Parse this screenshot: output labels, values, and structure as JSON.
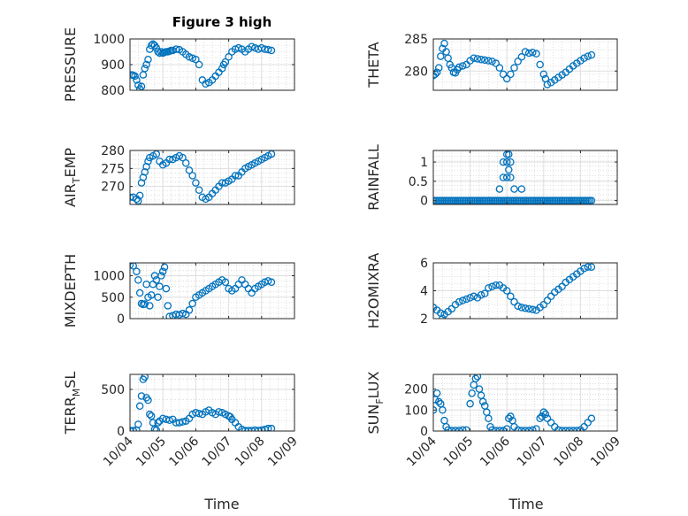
{
  "title": "Figure 3 high",
  "x_axis": {
    "label": "Time",
    "ticks": [
      "10/04",
      "10/05",
      "10/06",
      "10/07",
      "10/08",
      "10/09"
    ],
    "range": [
      0,
      5
    ]
  },
  "marker_color": "#0072BD",
  "chart_data": [
    {
      "type": "scatter",
      "ylabel": "PRESSURE",
      "ylabel_sub": "",
      "ylabel_post": "",
      "ylim": [
        800,
        1000
      ],
      "yticks": [
        800,
        900,
        1000
      ],
      "ytick_labels": [
        "800",
        "900",
        "1000"
      ],
      "x": [
        0.05,
        0.1,
        0.15,
        0.2,
        0.25,
        0.3,
        0.35,
        0.4,
        0.45,
        0.5,
        0.55,
        0.6,
        0.65,
        0.7,
        0.75,
        0.8,
        0.85,
        0.9,
        0.95,
        1.0,
        1.05,
        1.1,
        1.15,
        1.2,
        1.25,
        1.3,
        1.4,
        1.5,
        1.6,
        1.7,
        1.8,
        1.9,
        2.0,
        2.1,
        2.2,
        2.3,
        2.4,
        2.5,
        2.6,
        2.7,
        2.8,
        2.85,
        2.9,
        3.0,
        3.1,
        3.2,
        3.3,
        3.4,
        3.5,
        3.6,
        3.7,
        3.8,
        3.9,
        4.0,
        4.1,
        4.2,
        4.3
      ],
      "y": [
        860,
        858,
        855,
        840,
        820,
        805,
        815,
        860,
        885,
        900,
        920,
        960,
        975,
        980,
        975,
        965,
        950,
        945,
        950,
        945,
        948,
        950,
        950,
        952,
        955,
        955,
        960,
        958,
        950,
        940,
        930,
        925,
        920,
        900,
        840,
        825,
        830,
        840,
        855,
        870,
        885,
        900,
        910,
        930,
        950,
        960,
        965,
        960,
        950,
        960,
        970,
        965,
        960,
        965,
        960,
        958,
        955
      ]
    },
    {
      "type": "scatter",
      "ylabel": "THETA",
      "ylabel_sub": "",
      "ylabel_post": "",
      "ylim": [
        277,
        285
      ],
      "yticks": [
        280,
        285
      ],
      "ytick_labels": [
        "280",
        "285"
      ],
      "x": [
        0.0,
        0.05,
        0.1,
        0.15,
        0.2,
        0.25,
        0.3,
        0.35,
        0.4,
        0.45,
        0.5,
        0.55,
        0.6,
        0.65,
        0.7,
        0.8,
        0.9,
        1.0,
        1.1,
        1.2,
        1.3,
        1.4,
        1.5,
        1.6,
        1.7,
        1.8,
        1.9,
        2.0,
        2.1,
        2.2,
        2.3,
        2.4,
        2.5,
        2.6,
        2.7,
        2.8,
        2.9,
        3.0,
        3.05,
        3.1,
        3.2,
        3.3,
        3.4,
        3.5,
        3.6,
        3.7,
        3.8,
        3.9,
        4.0,
        4.1,
        4.2,
        4.3
      ],
      "y": [
        279.3,
        279.5,
        279.8,
        280.5,
        282.3,
        283.5,
        284.3,
        283.0,
        282.0,
        281.0,
        280.5,
        279.8,
        279.7,
        280.2,
        280.6,
        280.8,
        281.0,
        281.6,
        282.0,
        281.9,
        281.8,
        281.7,
        281.6,
        281.5,
        281.2,
        280.5,
        279.5,
        278.8,
        279.5,
        280.5,
        281.5,
        282.2,
        283.0,
        282.8,
        282.9,
        282.7,
        281.0,
        279.5,
        278.8,
        277.9,
        278.2,
        278.6,
        279.0,
        279.4,
        279.8,
        280.3,
        280.8,
        281.2,
        281.6,
        282.0,
        282.3,
        282.5
      ]
    },
    {
      "type": "scatter",
      "ylabel": "AIR",
      "ylabel_sub": "T",
      "ylabel_post": "EMP",
      "ylim": [
        265,
        280
      ],
      "yticks": [
        270,
        275,
        280
      ],
      "ytick_labels": [
        "270",
        "275",
        "280"
      ],
      "x": [
        0.0,
        0.1,
        0.2,
        0.25,
        0.3,
        0.35,
        0.4,
        0.45,
        0.5,
        0.55,
        0.6,
        0.7,
        0.8,
        0.9,
        1.0,
        1.1,
        1.2,
        1.3,
        1.4,
        1.5,
        1.6,
        1.7,
        1.8,
        1.9,
        2.0,
        2.1,
        2.2,
        2.3,
        2.4,
        2.5,
        2.6,
        2.7,
        2.8,
        2.9,
        3.0,
        3.1,
        3.2,
        3.3,
        3.4,
        3.5,
        3.6,
        3.7,
        3.8,
        3.9,
        4.0,
        4.1,
        4.2,
        4.3
      ],
      "y": [
        267.0,
        267.0,
        266.5,
        266.0,
        267.5,
        271.0,
        272.5,
        274.0,
        275.5,
        277.0,
        278.0,
        278.5,
        279.0,
        277.0,
        276.0,
        276.5,
        277.5,
        277.5,
        278.0,
        278.5,
        278.0,
        276.5,
        274.5,
        273.0,
        271.0,
        269.0,
        267.0,
        266.5,
        267.0,
        268.0,
        269.0,
        270.0,
        271.0,
        271.0,
        271.5,
        272.0,
        273.0,
        273.0,
        274.0,
        275.0,
        275.5,
        276.0,
        276.5,
        277.0,
        277.5,
        278.0,
        278.5,
        279.0
      ]
    },
    {
      "type": "scatter",
      "ylabel": "RAINFALL",
      "ylabel_sub": "",
      "ylabel_post": "",
      "ylim": [
        -0.1,
        1.3
      ],
      "yticks": [
        0,
        0.5,
        1
      ],
      "ytick_labels": [
        "0",
        "0.5",
        "1"
      ],
      "x": [
        0.0,
        0.05,
        0.1,
        0.15,
        0.2,
        0.25,
        0.3,
        0.35,
        0.4,
        0.45,
        0.5,
        0.55,
        0.6,
        0.65,
        0.7,
        0.75,
        0.8,
        0.85,
        0.9,
        0.95,
        1.0,
        1.05,
        1.1,
        1.15,
        1.2,
        1.25,
        1.3,
        1.35,
        1.4,
        1.45,
        1.5,
        1.55,
        1.6,
        1.65,
        1.7,
        1.75,
        1.8,
        1.85,
        1.9,
        1.95,
        2.0,
        2.05,
        2.1,
        2.15,
        2.2,
        2.25,
        2.3,
        2.35,
        2.4,
        2.45,
        2.5,
        2.55,
        2.6,
        2.65,
        2.7,
        2.75,
        2.8,
        2.85,
        2.9,
        2.95,
        3.0,
        3.05,
        3.1,
        3.15,
        3.2,
        3.25,
        3.3,
        3.35,
        3.4,
        3.45,
        3.5,
        3.55,
        3.6,
        3.65,
        3.7,
        3.75,
        3.8,
        3.85,
        3.9,
        3.95,
        4.0,
        4.05,
        4.1,
        4.15,
        4.2,
        4.25,
        4.3,
        1.8,
        1.9,
        1.9,
        2.0,
        2.0,
        2.0,
        2.05,
        2.05,
        2.1,
        2.1,
        2.2,
        2.4
      ],
      "y": [
        0,
        0,
        0,
        0,
        0,
        0,
        0,
        0,
        0,
        0,
        0,
        0,
        0,
        0,
        0,
        0,
        0,
        0,
        0,
        0,
        0,
        0,
        0,
        0,
        0,
        0,
        0,
        0,
        0,
        0,
        0,
        0,
        0,
        0,
        0,
        0,
        0,
        0,
        0,
        0,
        0,
        0,
        0,
        0,
        0,
        0,
        0,
        0,
        0,
        0,
        0,
        0,
        0,
        0,
        0,
        0,
        0,
        0,
        0,
        0,
        0,
        0,
        0,
        0,
        0,
        0,
        0,
        0,
        0,
        0,
        0,
        0,
        0,
        0,
        0,
        0,
        0,
        0,
        0,
        0,
        0,
        0,
        0,
        0,
        0,
        0,
        0,
        0.3,
        1.0,
        0.6,
        1.0,
        1.2,
        0.6,
        1.2,
        0.8,
        1.0,
        0.6,
        0.3,
        0.3
      ]
    },
    {
      "type": "scatter",
      "ylabel": "MIXDEPTH",
      "ylabel_sub": "",
      "ylabel_post": "",
      "ylim": [
        0,
        1300
      ],
      "yticks": [
        0,
        500,
        1000
      ],
      "ytick_labels": [
        "0",
        "500",
        "1000"
      ],
      "x": [
        0.0,
        0.1,
        0.2,
        0.25,
        0.3,
        0.35,
        0.4,
        0.45,
        0.5,
        0.55,
        0.6,
        0.65,
        0.7,
        0.75,
        0.8,
        0.85,
        0.9,
        0.95,
        1.0,
        1.05,
        1.1,
        1.15,
        1.2,
        1.3,
        1.4,
        1.5,
        1.6,
        1.7,
        1.8,
        1.9,
        2.0,
        2.1,
        2.2,
        2.3,
        2.4,
        2.5,
        2.6,
        2.7,
        2.8,
        2.9,
        3.0,
        3.1,
        3.2,
        3.3,
        3.4,
        3.5,
        3.6,
        3.7,
        3.8,
        3.9,
        4.0,
        4.1,
        4.2,
        4.3
      ],
      "y": [
        1250,
        1230,
        1100,
        900,
        600,
        350,
        330,
        340,
        800,
        500,
        300,
        550,
        800,
        1000,
        900,
        500,
        750,
        1000,
        1100,
        1200,
        700,
        300,
        50,
        70,
        100,
        90,
        120,
        100,
        200,
        350,
        500,
        550,
        600,
        650,
        700,
        750,
        800,
        850,
        900,
        850,
        700,
        650,
        700,
        800,
        900,
        800,
        700,
        600,
        700,
        750,
        800,
        850,
        880,
        850
      ]
    },
    {
      "type": "scatter",
      "ylabel": "H2OMIXRA",
      "ylabel_sub": "",
      "ylabel_post": "",
      "ylim": [
        2,
        6
      ],
      "yticks": [
        2,
        4,
        6
      ],
      "ytick_labels": [
        "2",
        "4",
        "6"
      ],
      "x": [
        0.0,
        0.1,
        0.2,
        0.25,
        0.3,
        0.4,
        0.5,
        0.6,
        0.7,
        0.8,
        0.9,
        1.0,
        1.1,
        1.2,
        1.3,
        1.4,
        1.5,
        1.6,
        1.7,
        1.8,
        1.9,
        2.0,
        2.1,
        2.2,
        2.3,
        2.4,
        2.5,
        2.6,
        2.7,
        2.8,
        2.9,
        3.0,
        3.1,
        3.2,
        3.3,
        3.4,
        3.5,
        3.6,
        3.7,
        3.8,
        3.9,
        4.0,
        4.1,
        4.2,
        4.3
      ],
      "y": [
        2.8,
        2.6,
        2.4,
        2.0,
        2.3,
        2.5,
        2.7,
        3.0,
        3.2,
        3.3,
        3.4,
        3.5,
        3.6,
        3.5,
        3.7,
        3.8,
        4.2,
        4.3,
        4.4,
        4.4,
        4.2,
        4.0,
        3.6,
        3.2,
        2.9,
        2.8,
        2.75,
        2.7,
        2.65,
        2.6,
        2.8,
        3.0,
        3.3,
        3.6,
        3.9,
        4.1,
        4.3,
        4.6,
        4.8,
        5.0,
        5.2,
        5.4,
        5.6,
        5.7,
        5.7
      ]
    },
    {
      "type": "scatter",
      "ylabel": "TERR",
      "ylabel_sub": "M",
      "ylabel_post": "SL",
      "ylim": [
        0,
        680
      ],
      "yticks": [
        0,
        500
      ],
      "ytick_labels": [
        "0",
        "500"
      ],
      "x": [
        0.0,
        0.1,
        0.2,
        0.25,
        0.3,
        0.35,
        0.4,
        0.45,
        0.5,
        0.55,
        0.6,
        0.65,
        0.7,
        0.75,
        0.8,
        0.85,
        0.9,
        1.0,
        1.1,
        1.2,
        1.3,
        1.4,
        1.5,
        1.6,
        1.7,
        1.8,
        1.9,
        2.0,
        2.1,
        2.2,
        2.3,
        2.4,
        2.5,
        2.6,
        2.7,
        2.8,
        2.9,
        3.0,
        3.05,
        3.1,
        3.2,
        3.3,
        3.4,
        3.5,
        3.6,
        3.7,
        3.8,
        3.9,
        4.0,
        4.1,
        4.2,
        4.3
      ],
      "y": [
        5,
        5,
        10,
        80,
        300,
        420,
        620,
        650,
        400,
        370,
        200,
        180,
        100,
        20,
        10,
        100,
        120,
        150,
        140,
        130,
        140,
        100,
        100,
        110,
        120,
        150,
        200,
        220,
        210,
        200,
        230,
        250,
        220,
        200,
        230,
        220,
        200,
        180,
        170,
        140,
        100,
        50,
        20,
        5,
        5,
        5,
        10,
        5,
        10,
        20,
        30,
        30
      ]
    },
    {
      "type": "scatter",
      "ylabel": "SUN",
      "ylabel_sub": "F",
      "ylabel_post": "LUX",
      "ylim": [
        0,
        270
      ],
      "yticks": [
        0,
        100,
        200
      ],
      "ytick_labels": [
        "0",
        "100",
        "200"
      ],
      "x": [
        0.0,
        0.05,
        0.1,
        0.15,
        0.2,
        0.25,
        0.3,
        0.35,
        0.4,
        0.5,
        0.6,
        0.7,
        0.8,
        0.9,
        1.0,
        1.05,
        1.1,
        1.15,
        1.2,
        1.25,
        1.3,
        1.35,
        1.4,
        1.45,
        1.5,
        1.55,
        1.6,
        1.7,
        1.8,
        1.9,
        2.0,
        2.05,
        2.1,
        2.15,
        2.2,
        2.3,
        2.4,
        2.5,
        2.6,
        2.7,
        2.8,
        2.9,
        2.95,
        3.0,
        3.05,
        3.1,
        3.2,
        3.3,
        3.4,
        3.5,
        3.6,
        3.7,
        3.8,
        3.9,
        4.0,
        4.1,
        4.2,
        4.3
      ],
      "y": [
        100,
        150,
        180,
        140,
        130,
        100,
        50,
        20,
        5,
        2,
        2,
        2,
        5,
        5,
        130,
        180,
        220,
        250,
        260,
        200,
        170,
        140,
        120,
        90,
        60,
        20,
        5,
        2,
        2,
        2,
        10,
        60,
        70,
        50,
        20,
        5,
        2,
        2,
        2,
        5,
        10,
        60,
        70,
        90,
        80,
        60,
        40,
        20,
        5,
        2,
        2,
        2,
        2,
        2,
        5,
        20,
        40,
        60
      ]
    }
  ]
}
